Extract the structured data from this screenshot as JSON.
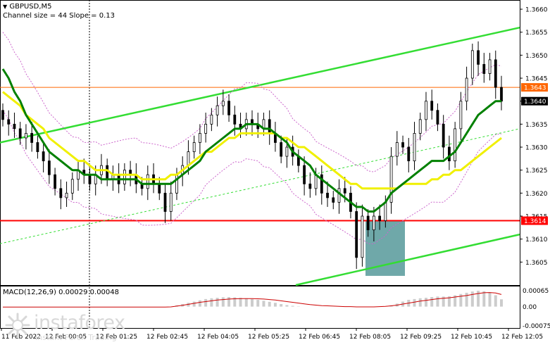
{
  "header": {
    "symbol": "GBPUSD,M5",
    "channel_info": "Channel size = 44 Slope = 0.13",
    "macd_label": "MACD(12,26,9) 0.00029 0.00048"
  },
  "branding": {
    "name": "instaforex",
    "tagline": "Instant Forex Trading"
  },
  "colors": {
    "background": "#ffffff",
    "candles": "#000000",
    "ma_fast": "#008000",
    "ma_slow": "#f0f000",
    "channel": "#33dd33",
    "bands": "#cc66cc",
    "level_line": "#ff0000",
    "current_price_line": "#ff6600",
    "highlight_box": "#5f9ea0",
    "macd_hist": "#ffcccc",
    "macd_signal": "#cc0000"
  },
  "chart_data": {
    "type": "candlestick",
    "price_axis": {
      "ticks": [
        "1.3660",
        "1.3655",
        "1.3650",
        "1.3645",
        "1.3640",
        "1.3635",
        "1.3630",
        "1.3625",
        "1.3620",
        "1.3615",
        "1.3610",
        "1.3605"
      ],
      "range": [
        1.36,
        1.3662
      ]
    },
    "time_axis": {
      "ticks": [
        "11 Feb 2022",
        "12 Feb 00:05",
        "12 Feb 01:25",
        "12 Feb 02:45",
        "12 Feb 04:05",
        "12 Feb 05:25",
        "12 Feb 06:45",
        "12 Feb 08:05",
        "12 Feb 09:25",
        "12 Feb 10:45",
        "12 Feb 12:05"
      ]
    },
    "current_price": "1.3643",
    "last_price": "1.3640",
    "level_price": "1.3614",
    "closes": [
      1.3636,
      1.3635,
      1.3634,
      1.3632,
      1.3633,
      1.3631,
      1.3629,
      1.3627,
      1.3624,
      1.3621,
      1.3619,
      1.362,
      1.3623,
      1.3625,
      1.3624,
      1.3622,
      1.3624,
      1.3626,
      1.3623,
      1.3624,
      1.3622,
      1.3625,
      1.3624,
      1.3622,
      1.3621,
      1.3624,
      1.3622,
      1.362,
      1.3616,
      1.362,
      1.3624,
      1.3626,
      1.3629,
      1.3631,
      1.3633,
      1.3635,
      1.3637,
      1.3639,
      1.364,
      1.3637,
      1.3635,
      1.3634,
      1.3636,
      1.3635,
      1.3634,
      1.3636,
      1.3633,
      1.3631,
      1.3628,
      1.363,
      1.3628,
      1.3626,
      1.3622,
      1.3621,
      1.3624,
      1.362,
      1.3619,
      1.3618,
      1.3621,
      1.362,
      1.3616,
      1.3606,
      1.3615,
      1.3612,
      1.3615,
      1.3614,
      1.3618,
      1.3628,
      1.3631,
      1.363,
      1.3627,
      1.3633,
      1.3636,
      1.364,
      1.3638,
      1.3635,
      1.363,
      1.3627,
      1.3634,
      1.364,
      1.3645,
      1.3651,
      1.3648,
      1.3646,
      1.3649,
      1.3643,
      1.364
    ],
    "ma_fast": [
      1.3647,
      1.3645,
      1.3642,
      1.364,
      1.3637,
      1.3635,
      1.3633,
      1.3631,
      1.3629,
      1.3628,
      1.3627,
      1.3626,
      1.3625,
      1.3625,
      1.3624,
      1.3624,
      1.3624,
      1.3623,
      1.3623,
      1.3623,
      1.3623,
      1.3623,
      1.3623,
      1.3623,
      1.3622,
      1.3622,
      1.3622,
      1.3622,
      1.3622,
      1.3622,
      1.3623,
      1.3624,
      1.3625,
      1.3626,
      1.3627,
      1.3629,
      1.363,
      1.3631,
      1.3632,
      1.3633,
      1.3634,
      1.3634,
      1.3635,
      1.3635,
      1.3635,
      1.3634,
      1.3634,
      1.3633,
      1.3632,
      1.3631,
      1.3629,
      1.3628,
      1.3627,
      1.3626,
      1.3624,
      1.3623,
      1.3622,
      1.3621,
      1.362,
      1.3619,
      1.3618,
      1.3617,
      1.3617,
      1.3616,
      1.3616,
      1.3617,
      1.3618,
      1.362,
      1.3621,
      1.3622,
      1.3623,
      1.3624,
      1.3625,
      1.3626,
      1.3627,
      1.3627,
      1.3627,
      1.3628,
      1.3629,
      1.3631,
      1.3633,
      1.3635,
      1.3637,
      1.3638,
      1.3639,
      1.364,
      1.364
    ],
    "ma_slow": [
      1.3642,
      1.3641,
      1.364,
      1.3639,
      1.3637,
      1.3636,
      1.3635,
      1.3634,
      1.3632,
      1.3631,
      1.363,
      1.3629,
      1.3628,
      1.3627,
      1.3627,
      1.3626,
      1.3625,
      1.3625,
      1.3625,
      1.3624,
      1.3624,
      1.3624,
      1.3624,
      1.3624,
      1.3623,
      1.3623,
      1.3623,
      1.3623,
      1.3623,
      1.3624,
      1.3624,
      1.3625,
      1.3626,
      1.3627,
      1.3628,
      1.3629,
      1.3629,
      1.363,
      1.3631,
      1.3632,
      1.3632,
      1.3633,
      1.3633,
      1.3633,
      1.3633,
      1.3633,
      1.3633,
      1.3633,
      1.3632,
      1.3632,
      1.3631,
      1.363,
      1.363,
      1.3629,
      1.3628,
      1.3627,
      1.3626,
      1.3625,
      1.3624,
      1.3623,
      1.3622,
      1.3622,
      1.3621,
      1.3621,
      1.3621,
      1.3621,
      1.3621,
      1.3621,
      1.3621,
      1.3622,
      1.3622,
      1.3622,
      1.3622,
      1.3622,
      1.3623,
      1.3623,
      1.3624,
      1.3624,
      1.3625,
      1.3625,
      1.3626,
      1.3627,
      1.3628,
      1.3629,
      1.363,
      1.3631,
      1.3632
    ],
    "macd": {
      "ticks": [
        "0.00065",
        "0.00",
        "-0.00075"
      ],
      "range": [
        -0.00085,
        0.0008
      ],
      "hist": [
        0,
        0,
        0,
        0,
        0,
        0,
        0,
        0,
        0,
        0,
        0,
        0,
        0,
        0,
        0,
        0,
        0,
        0,
        0,
        0,
        0,
        0,
        0,
        0,
        0,
        0,
        0,
        0,
        0,
        0,
        5e-05,
        0.0001,
        0.00015,
        0.0002,
        0.00025,
        0.0003,
        0.00033,
        0.00035,
        0.00037,
        0.00038,
        0.00037,
        0.00035,
        0.00033,
        0.0003,
        0.00027,
        0.00023,
        0.00019,
        0.00015,
        0.0001,
        6e-05,
        3e-05,
        1e-05,
        0,
        0,
        0,
        0,
        0,
        0,
        0,
        0,
        0,
        0,
        0,
        0,
        0,
        0,
        0,
        5e-05,
        0.00012,
        0.0002,
        0.00027,
        0.0003,
        0.00033,
        0.00035,
        0.00038,
        0.0004,
        0.0004,
        0.00041,
        0.00045,
        0.0005,
        0.00055,
        0.0006,
        0.00063,
        0.00061,
        0.00055,
        0.00045,
        0.00029
      ],
      "signal": [
        -2e-05,
        -2e-05,
        -2e-05,
        -2e-05,
        -2e-05,
        -2e-05,
        -2e-05,
        -2e-05,
        -2e-05,
        -2e-05,
        -2e-05,
        -2e-05,
        -2e-05,
        -2e-05,
        -2e-05,
        -2e-05,
        -2e-05,
        -2e-05,
        -2e-05,
        -2e-05,
        -2e-05,
        -2e-05,
        -2e-05,
        -2e-05,
        -2e-05,
        -2e-05,
        -2e-05,
        -2e-05,
        -2e-05,
        -1e-05,
        2e-05,
        5e-05,
        9e-05,
        0.00013,
        0.00017,
        0.0002,
        0.00023,
        0.00026,
        0.00028,
        0.0003,
        0.00031,
        0.00032,
        0.00032,
        0.00032,
        0.00031,
        0.0003,
        0.00028,
        0.00026,
        0.00023,
        0.0002,
        0.00017,
        0.00014,
        0.00011,
        8e-05,
        6e-05,
        4e-05,
        3e-05,
        2e-05,
        1e-05,
        0,
        0,
        -1e-05,
        -1e-05,
        -1e-05,
        -1e-05,
        0,
        1e-05,
        3e-05,
        6e-05,
        0.0001,
        0.00014,
        0.00018,
        0.00022,
        0.00025,
        0.00028,
        0.00031,
        0.00033,
        0.00035,
        0.00038,
        0.00041,
        0.00044,
        0.00048,
        0.00052,
        0.00055,
        0.00056,
        0.00054,
        0.00048
      ]
    }
  }
}
